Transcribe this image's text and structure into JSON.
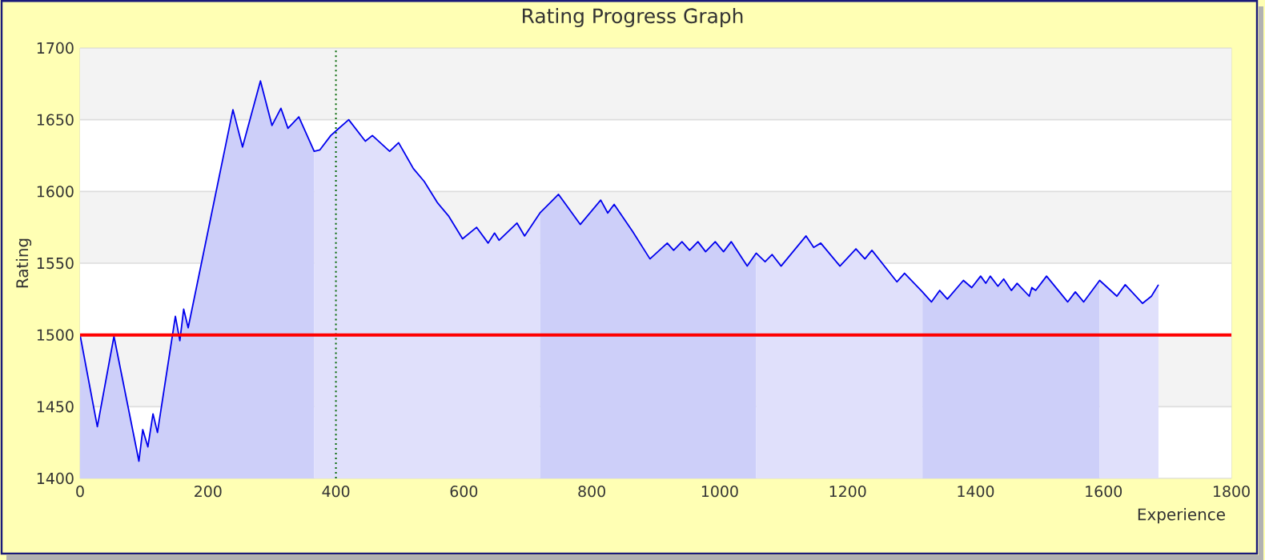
{
  "chart_data": {
    "type": "area",
    "title": "Rating Progress Graph",
    "xlabel": "Experience",
    "ylabel": "Rating",
    "xlim": [
      0,
      1800
    ],
    "ylim": [
      1400,
      1700
    ],
    "xticks": [
      0,
      200,
      400,
      600,
      800,
      1000,
      1200,
      1400,
      1600,
      1800
    ],
    "yticks": [
      1400,
      1450,
      1500,
      1550,
      1600,
      1650,
      1700
    ],
    "grid": "y",
    "x": [
      0,
      27,
      53,
      92,
      98,
      106,
      114,
      121,
      149,
      156,
      162,
      169,
      239,
      254,
      282,
      300,
      314,
      325,
      342,
      366,
      375,
      392,
      402,
      420,
      446,
      457,
      484,
      498,
      521,
      538,
      559,
      576,
      598,
      620,
      638,
      648,
      655,
      683,
      695,
      719,
      748,
      782,
      814,
      825,
      835,
      864,
      891,
      918,
      928,
      941,
      953,
      966,
      978,
      993,
      1006,
      1018,
      1043,
      1057,
      1071,
      1082,
      1096,
      1135,
      1147,
      1158,
      1188,
      1213,
      1227,
      1238,
      1277,
      1289,
      1317,
      1331,
      1344,
      1356,
      1381,
      1394,
      1408,
      1416,
      1423,
      1435,
      1444,
      1456,
      1465,
      1484,
      1488,
      1494,
      1511,
      1544,
      1556,
      1569,
      1594,
      1621,
      1634,
      1661,
      1675,
      1686
    ],
    "series": [
      {
        "color": "#cdcff9",
        "values": [
          1500,
          1436,
          1499,
          1412,
          1434,
          1422,
          1445,
          1432,
          1513,
          1496,
          1518,
          1505,
          1657,
          1631,
          1677,
          1646,
          1658,
          1644,
          1652,
          1628,
          null,
          null,
          null,
          null,
          null,
          null,
          null,
          null,
          null,
          null,
          null,
          null,
          null,
          null,
          null,
          null,
          null,
          null,
          null,
          1585,
          1598,
          1577,
          1594,
          1585,
          1591,
          1572,
          1553,
          1564,
          1559,
          1565,
          1559,
          1565,
          1558,
          1565,
          1558,
          1565,
          1548,
          1557,
          null,
          null,
          null,
          null,
          null,
          null,
          null,
          null,
          null,
          null,
          null,
          null,
          1530,
          1523,
          1531,
          1525,
          1538,
          1533,
          1541,
          1536,
          1541,
          1534,
          1539,
          1531,
          1536,
          1527,
          1533,
          1531,
          1541,
          1523,
          1530,
          1523,
          1538,
          null,
          null,
          null,
          null,
          null
        ]
      },
      {
        "color": "#e0e0fb",
        "values": [
          null,
          null,
          null,
          null,
          null,
          null,
          null,
          null,
          null,
          null,
          null,
          null,
          null,
          null,
          null,
          null,
          null,
          null,
          null,
          1628,
          1629,
          1639,
          1643,
          1650,
          1635,
          1639,
          1628,
          1634,
          1616,
          1607,
          1592,
          1583,
          1567,
          1575,
          1564,
          1571,
          1566,
          1578,
          1569,
          1585,
          null,
          null,
          null,
          null,
          null,
          null,
          null,
          null,
          null,
          null,
          null,
          null,
          null,
          null,
          null,
          null,
          null,
          1557,
          1551,
          1556,
          1548,
          1569,
          1561,
          1564,
          1548,
          1560,
          1553,
          1559,
          1537,
          1543,
          1530,
          null,
          null,
          null,
          null,
          null,
          null,
          null,
          null,
          null,
          null,
          null,
          null,
          null,
          null,
          null,
          null,
          null,
          null,
          null,
          1538,
          1527,
          1535,
          1522,
          1527,
          1535
        ]
      },
      {
        "type": "line",
        "color": "#0000ee",
        "values": [
          1500,
          1436,
          1499,
          1412,
          1434,
          1422,
          1445,
          1432,
          1513,
          1496,
          1518,
          1505,
          1657,
          1631,
          1677,
          1646,
          1658,
          1644,
          1652,
          1628,
          1629,
          1639,
          1643,
          1650,
          1635,
          1639,
          1628,
          1634,
          1616,
          1607,
          1592,
          1583,
          1567,
          1575,
          1564,
          1571,
          1566,
          1578,
          1569,
          1585,
          1598,
          1577,
          1594,
          1585,
          1591,
          1572,
          1553,
          1564,
          1559,
          1565,
          1559,
          1565,
          1558,
          1565,
          1558,
          1565,
          1548,
          1557,
          1551,
          1556,
          1548,
          1569,
          1561,
          1564,
          1548,
          1560,
          1553,
          1559,
          1537,
          1543,
          1530,
          1523,
          1531,
          1525,
          1538,
          1533,
          1541,
          1536,
          1541,
          1534,
          1539,
          1531,
          1536,
          1527,
          1533,
          1531,
          1541,
          1523,
          1530,
          1523,
          1538,
          1527,
          1535,
          1522,
          1527,
          1535
        ]
      }
    ],
    "ref_lines": [
      {
        "axis": "x",
        "value": 400,
        "color": "#006600",
        "line_style": "dotted"
      },
      {
        "axis": "y",
        "value": 1500,
        "color": "#ff0000",
        "line_style": "solid"
      }
    ]
  }
}
